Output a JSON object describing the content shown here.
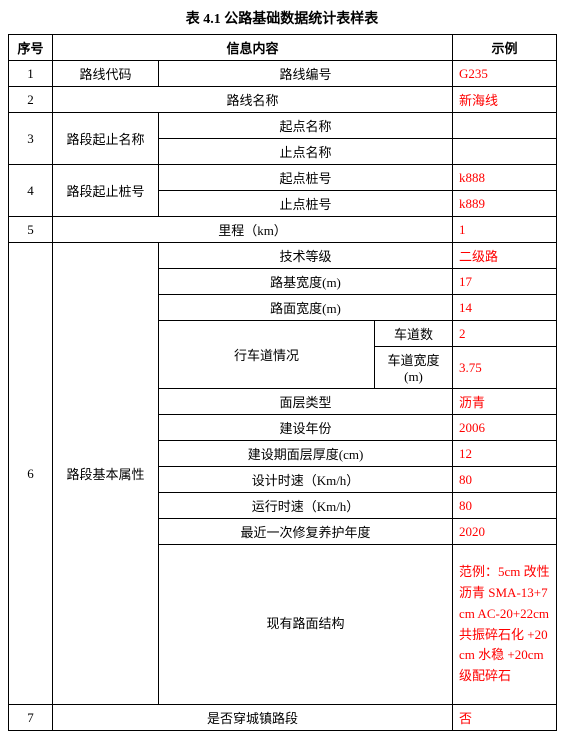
{
  "title": "表 4.1 公路基础数据统计表样表",
  "header": {
    "seq": "序号",
    "info": "信息内容",
    "example": "示例"
  },
  "rows": {
    "r1": {
      "seq": "1",
      "label": "路线代码",
      "content": "路线编号",
      "example": "G235"
    },
    "r2": {
      "seq": "2",
      "content": "路线名称",
      "example": "新海线"
    },
    "r3": {
      "seq": "3",
      "label": "路段起止名称",
      "a": {
        "content": "起点名称",
        "example": ""
      },
      "b": {
        "content": "止点名称",
        "example": ""
      }
    },
    "r4": {
      "seq": "4",
      "label": "路段起止桩号",
      "a": {
        "content": "起点桩号",
        "example": "k888"
      },
      "b": {
        "content": "止点桩号",
        "example": "k889"
      }
    },
    "r5": {
      "seq": "5",
      "content": "里程（km）",
      "example": "1"
    },
    "r6": {
      "seq": "6",
      "label": "路段基本属性",
      "items": {
        "tech": {
          "content": "技术等级",
          "example": "二级路"
        },
        "subgradeW": {
          "content": "路基宽度(m)",
          "example": "17"
        },
        "pavementW": {
          "content": "路面宽度(m)",
          "example": "14"
        },
        "laneGroup": {
          "label": "行车道情况",
          "count": {
            "content": "车道数",
            "example": "2"
          },
          "width": {
            "content": "车道宽度(m)",
            "example": "3.75"
          }
        },
        "surfaceType": {
          "content": "面层类型",
          "example": "沥青"
        },
        "buildYear": {
          "content": "建设年份",
          "example": "2006"
        },
        "buildThick": {
          "content": "建设期面层厚度(cm)",
          "example": "12"
        },
        "designSpeed": {
          "content": "设计时速（Km/h）",
          "example": "80"
        },
        "runSpeed": {
          "content": "运行时速（Km/h）",
          "example": "80"
        },
        "lastMaint": {
          "content": "最近一次修复养护年度",
          "example": "2020"
        },
        "structure": {
          "content": "现有路面结构",
          "example": "范例：5cm 改性沥青 SMA-13+7cm AC-20+22cm 共振碎石化 +20cm 水稳 +20cm 级配碎石"
        }
      }
    },
    "r7": {
      "seq": "7",
      "content": "是否穿城镇路段",
      "example": "否"
    }
  }
}
